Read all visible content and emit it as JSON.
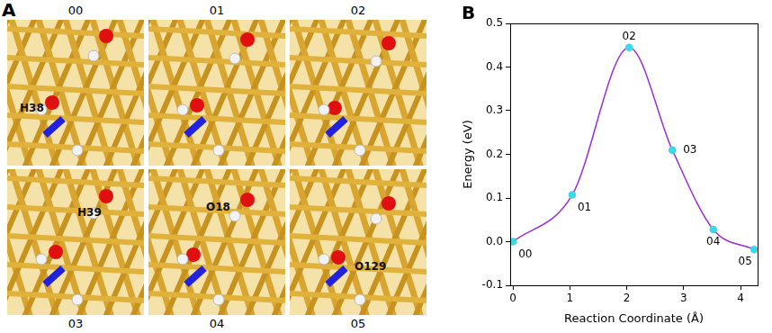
{
  "chart_data": {
    "type": "line",
    "title": "B",
    "x_label": "Reaction Coordinate (Å)",
    "y_label": "Energy (eV)",
    "x": [
      0,
      1.04,
      2.04,
      2.8,
      3.52,
      4.24
    ],
    "values": [
      0,
      0.107,
      0.445,
      0.21,
      0.028,
      -0.018
    ],
    "point_labels": [
      "00",
      "01",
      "02",
      "03",
      "04",
      "05"
    ],
    "color": "#9a2fd8",
    "marker": "circle",
    "marker_color": "#3cd8e8",
    "line_style": "smooth",
    "xlim": [
      -0.05,
      4.3
    ],
    "xticks": [
      0,
      1,
      2,
      3,
      4
    ],
    "ylim": [
      -0.1,
      0.5
    ],
    "yticks": [
      -0.1,
      {
        "value": 0,
        "label": "0.0"
      },
      0.1,
      0.2,
      0.3,
      0.4,
      0.5
    ],
    "grid": false,
    "legend": null
  },
  "structure_panel": {
    "label": "A",
    "frames": [
      {
        "label": "00",
        "atoms": [
          "H38"
        ]
      },
      {
        "label": "01",
        "atoms": []
      },
      {
        "label": "02",
        "atoms": []
      },
      {
        "label": "03",
        "atoms": [
          "H39"
        ]
      },
      {
        "label": "04",
        "atoms": [
          "O18"
        ]
      },
      {
        "label": "05",
        "atoms": [
          "O129"
        ]
      }
    ]
  }
}
